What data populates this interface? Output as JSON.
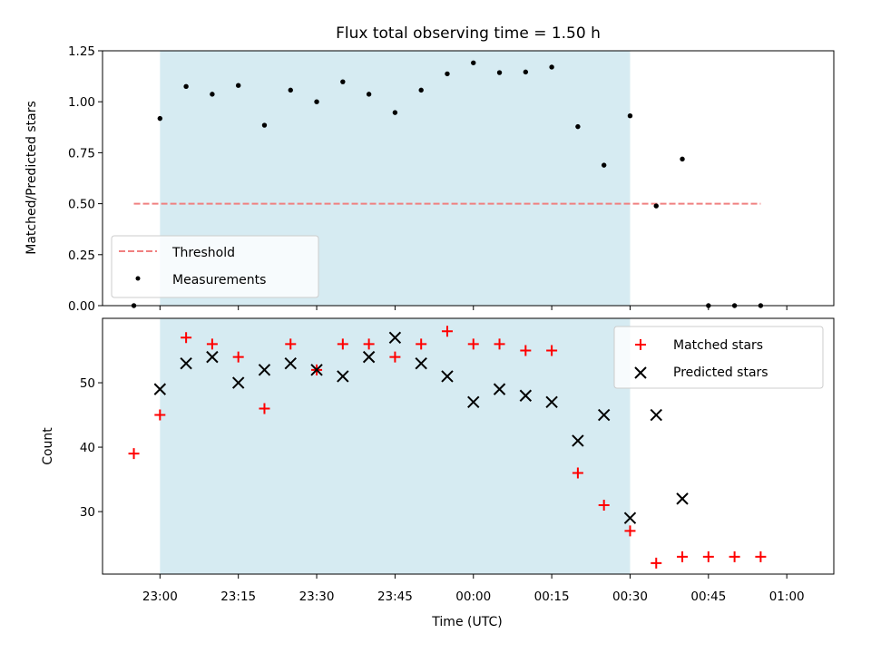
{
  "chart_data": [
    {
      "type": "scatter",
      "title": "Flux total observing time = 1.50 h",
      "xlabel": "",
      "ylabel": "Matched/Predicted stars",
      "ylim": [
        0,
        1.25
      ],
      "yticks": [
        "0.00",
        "0.25",
        "0.50",
        "0.75",
        "1.00",
        "1.25"
      ],
      "shaded_region": [
        "23:00",
        "00:30"
      ],
      "legend_position": "lower-left",
      "series": [
        {
          "name": "Threshold",
          "kind": "dashed-line",
          "color": "#f08080",
          "x": [
            "22:55",
            "00:55"
          ],
          "y": [
            0.5,
            0.5
          ]
        },
        {
          "name": "Measurements",
          "kind": "dot",
          "color": "#000000",
          "x": [
            "22:55",
            "23:00",
            "23:05",
            "23:10",
            "23:15",
            "23:20",
            "23:25",
            "23:30",
            "23:35",
            "23:40",
            "23:45",
            "23:50",
            "23:55",
            "00:00",
            "00:05",
            "00:10",
            "00:15",
            "00:20",
            "00:25",
            "00:30",
            "00:35",
            "00:40",
            "00:45",
            "00:50",
            "00:55"
          ],
          "y": [
            0.0,
            0.918,
            1.075,
            1.037,
            1.08,
            0.885,
            1.057,
            1.0,
            1.098,
            1.037,
            0.947,
            1.057,
            1.137,
            1.191,
            1.143,
            1.146,
            1.17,
            0.878,
            0.689,
            0.931,
            0.489,
            0.719,
            0.0,
            0.0,
            0.0
          ]
        }
      ]
    },
    {
      "type": "scatter",
      "xlabel": "Time (UTC)",
      "ylabel": "Count",
      "ylim": [
        20.3,
        60
      ],
      "yticks": [
        "30",
        "40",
        "50"
      ],
      "xticks": [
        "23:00",
        "23:15",
        "23:30",
        "23:45",
        "00:00",
        "00:15",
        "00:30",
        "00:45",
        "01:00"
      ],
      "shaded_region": [
        "23:00",
        "00:30"
      ],
      "legend_position": "upper-right",
      "series": [
        {
          "name": "Matched stars",
          "marker": "+",
          "color": "#ff0000",
          "x": [
            "22:55",
            "23:00",
            "23:05",
            "23:10",
            "23:15",
            "23:20",
            "23:25",
            "23:30",
            "23:35",
            "23:40",
            "23:45",
            "23:50",
            "23:55",
            "00:00",
            "00:05",
            "00:10",
            "00:15",
            "00:20",
            "00:25",
            "00:30",
            "00:35",
            "00:40",
            "00:45",
            "00:50",
            "00:55"
          ],
          "y": [
            39,
            45,
            57,
            56,
            54,
            46,
            56,
            52,
            56,
            56,
            54,
            56,
            58,
            56,
            56,
            55,
            55,
            36,
            31,
            27,
            22,
            23,
            23,
            23,
            23
          ]
        },
        {
          "name": "Predicted stars",
          "marker": "x",
          "color": "#000000",
          "x": [
            "23:00",
            "23:05",
            "23:10",
            "23:15",
            "23:20",
            "23:25",
            "23:30",
            "23:35",
            "23:40",
            "23:45",
            "23:50",
            "23:55",
            "00:00",
            "00:05",
            "00:10",
            "00:15",
            "00:20",
            "00:25",
            "00:30",
            "00:35",
            "00:40"
          ],
          "y": [
            49,
            53,
            54,
            50,
            52,
            53,
            52,
            51,
            54,
            57,
            53,
            51,
            47,
            49,
            48,
            47,
            41,
            45,
            29,
            45,
            32
          ]
        }
      ]
    }
  ]
}
